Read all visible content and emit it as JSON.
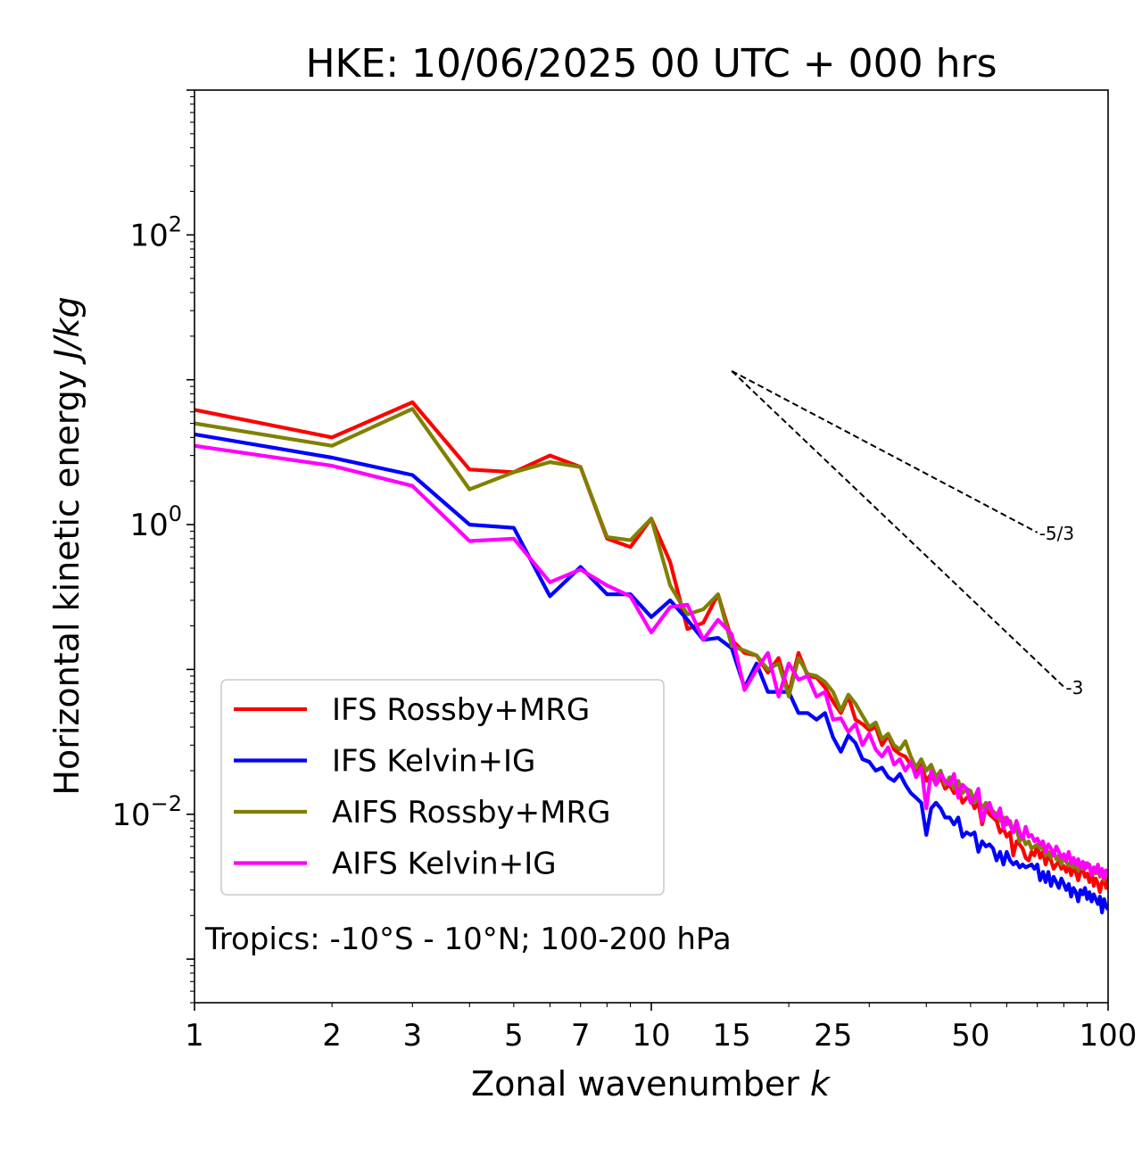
{
  "chart_data": {
    "type": "line",
    "title": "HKE: 10/06/2025 00 UTC + 000 hrs",
    "xlabel": "Zonal wavenumber",
    "xlabel_symbol": "k",
    "ylabel": "Horizontal kinetic energy",
    "ylabel_unit": "J/kg",
    "x_scale": "log",
    "y_scale": "log",
    "xlim": [
      1,
      100
    ],
    "ylim": [
      0.0005,
      1000
    ],
    "x_ticks": [
      1,
      2,
      3,
      5,
      7,
      10,
      15,
      25,
      50,
      100
    ],
    "x_tick_labels": [
      "1",
      "2",
      "3",
      "5",
      "7",
      "10",
      "15",
      "25",
      "50",
      "100"
    ],
    "y_ticks": [
      0.01,
      1,
      100
    ],
    "y_tick_labels": [
      {
        "base": "10",
        "exp": "−2"
      },
      {
        "base": "10",
        "exp": "0"
      },
      {
        "base": "10",
        "exp": "2"
      }
    ],
    "grid": false,
    "legend_position": "lower-left",
    "annotation": "Tropics: -10°S - 10°N; 100-200 hPa",
    "reference_slopes": [
      {
        "label": "-5/3",
        "slope": -1.6667,
        "x_start": 15,
        "x_end": 70,
        "y_start": 11.5
      },
      {
        "label": "-3",
        "slope": -3,
        "x_start": 15,
        "x_end": 80,
        "y_start": 11.5
      }
    ],
    "series": [
      {
        "name": "IFS Rossby+MRG",
        "color": "#ff0000",
        "x": [
          1,
          2,
          3,
          4,
          5,
          6,
          7,
          8,
          9,
          10,
          11,
          12,
          13,
          14,
          15,
          16,
          17,
          18,
          19,
          20,
          21,
          22,
          23,
          24,
          25,
          26,
          27,
          28,
          29,
          30,
          31,
          32,
          33,
          34,
          35,
          36,
          37,
          38,
          39,
          40,
          41,
          42,
          43,
          44,
          45,
          46,
          47,
          48,
          49,
          50,
          51,
          52,
          53,
          54,
          55,
          56,
          57,
          58,
          59,
          60,
          61,
          62,
          63,
          64,
          65,
          66,
          67,
          68,
          69,
          70,
          71,
          72,
          73,
          74,
          75,
          76,
          77,
          78,
          79,
          80,
          81,
          82,
          83,
          84,
          85,
          86,
          87,
          88,
          89,
          90,
          91,
          92,
          93,
          94,
          95,
          96,
          97,
          98,
          99,
          100
        ],
        "y": [
          6.2,
          4.0,
          7.0,
          2.4,
          2.3,
          3.0,
          2.5,
          0.8,
          0.7,
          1.1,
          0.55,
          0.19,
          0.21,
          0.33,
          0.16,
          0.13,
          0.125,
          0.095,
          0.12,
          0.068,
          0.13,
          0.09,
          0.088,
          0.075,
          0.06,
          0.05,
          0.065,
          0.045,
          0.042,
          0.038,
          0.04,
          0.03,
          0.035,
          0.028,
          0.026,
          0.025,
          0.022,
          0.02,
          0.022,
          0.017,
          0.019,
          0.016,
          0.018,
          0.015,
          0.016,
          0.014,
          0.015,
          0.012,
          0.013,
          0.013,
          0.011,
          0.012,
          0.0085,
          0.011,
          0.01,
          0.0095,
          0.009,
          0.0075,
          0.008,
          0.007,
          0.0075,
          0.0052,
          0.0065,
          0.0062,
          0.0058,
          0.005,
          0.0048,
          0.0055,
          0.0052,
          0.0062,
          0.005,
          0.0055,
          0.0045,
          0.0052,
          0.0048,
          0.0042,
          0.0045,
          0.0047,
          0.0042,
          0.0044,
          0.004,
          0.0045,
          0.0038,
          0.0042,
          0.004,
          0.0035,
          0.004,
          0.0042,
          0.0037,
          0.0039,
          0.0034,
          0.0041,
          0.0032,
          0.0036,
          0.0033,
          0.0029,
          0.0034,
          0.0036,
          0.0031,
          0.0038
        ]
      },
      {
        "name": "IFS Kelvin+IG",
        "color": "#0000ff",
        "x": [
          1,
          2,
          3,
          4,
          5,
          6,
          7,
          8,
          9,
          10,
          11,
          12,
          13,
          14,
          15,
          16,
          17,
          18,
          19,
          20,
          21,
          22,
          23,
          24,
          25,
          26,
          27,
          28,
          29,
          30,
          31,
          32,
          33,
          34,
          35,
          36,
          37,
          38,
          39,
          40,
          41,
          42,
          43,
          44,
          45,
          46,
          47,
          48,
          49,
          50,
          51,
          52,
          53,
          54,
          55,
          56,
          57,
          58,
          59,
          60,
          61,
          62,
          63,
          64,
          65,
          66,
          67,
          68,
          69,
          70,
          71,
          72,
          73,
          74,
          75,
          76,
          77,
          78,
          79,
          80,
          81,
          82,
          83,
          84,
          85,
          86,
          87,
          88,
          89,
          90,
          91,
          92,
          93,
          94,
          95,
          96,
          97,
          98,
          99,
          100
        ],
        "y": [
          4.2,
          2.9,
          2.2,
          1.0,
          0.95,
          0.32,
          0.51,
          0.33,
          0.33,
          0.23,
          0.3,
          0.22,
          0.16,
          0.165,
          0.14,
          0.075,
          0.11,
          0.07,
          0.07,
          0.07,
          0.05,
          0.05,
          0.045,
          0.05,
          0.034,
          0.027,
          0.035,
          0.031,
          0.024,
          0.023,
          0.02,
          0.021,
          0.018,
          0.017,
          0.019,
          0.016,
          0.014,
          0.013,
          0.012,
          0.0072,
          0.011,
          0.012,
          0.011,
          0.0095,
          0.0095,
          0.0085,
          0.0095,
          0.007,
          0.0075,
          0.0072,
          0.0075,
          0.0055,
          0.0065,
          0.006,
          0.0062,
          0.0058,
          0.0048,
          0.0055,
          0.0045,
          0.0055,
          0.0048,
          0.0045,
          0.0047,
          0.0043,
          0.0045,
          0.0043,
          0.0044,
          0.0045,
          0.0042,
          0.0045,
          0.0035,
          0.004,
          0.0034,
          0.004,
          0.0032,
          0.0037,
          0.0034,
          0.0031,
          0.0036,
          0.0033,
          0.003,
          0.0033,
          0.0027,
          0.0031,
          0.0029,
          0.0025,
          0.003,
          0.0028,
          0.0031,
          0.0026,
          0.0029,
          0.0025,
          0.0028,
          0.0026,
          0.0024,
          0.0027,
          0.0021,
          0.0026,
          0.0023,
          0.0022
        ]
      },
      {
        "name": "AIFS Rossby+MRG",
        "color": "#808000",
        "x": [
          1,
          2,
          3,
          4,
          5,
          6,
          7,
          8,
          9,
          10,
          11,
          12,
          13,
          14,
          15,
          16,
          17,
          18,
          19,
          20,
          21,
          22,
          23,
          24,
          25,
          26,
          27,
          28,
          29,
          30,
          31,
          32,
          33,
          34,
          35,
          36,
          37,
          38,
          39,
          40,
          41,
          42,
          43,
          44,
          45,
          46,
          47,
          48,
          49,
          50,
          51,
          52,
          53,
          54,
          55,
          56,
          57,
          58,
          59,
          60,
          61,
          62,
          63,
          64,
          65,
          66,
          67,
          68,
          69,
          70,
          71,
          72,
          73,
          74,
          75,
          76,
          77,
          78,
          79,
          80,
          81,
          82,
          83,
          84,
          85,
          86,
          87,
          88,
          89,
          90,
          91,
          92,
          93,
          94,
          95,
          96,
          97,
          98,
          99,
          100
        ],
        "y": [
          5.0,
          3.5,
          6.3,
          1.75,
          2.3,
          2.7,
          2.5,
          0.82,
          0.78,
          1.1,
          0.38,
          0.24,
          0.26,
          0.33,
          0.145,
          0.135,
          0.125,
          0.1,
          0.11,
          0.065,
          0.12,
          0.093,
          0.09,
          0.082,
          0.07,
          0.052,
          0.067,
          0.058,
          0.048,
          0.04,
          0.043,
          0.033,
          0.036,
          0.03,
          0.028,
          0.032,
          0.025,
          0.021,
          0.024,
          0.02,
          0.022,
          0.018,
          0.02,
          0.016,
          0.018,
          0.015,
          0.017,
          0.014,
          0.015,
          0.0145,
          0.012,
          0.013,
          0.011,
          0.012,
          0.011,
          0.0105,
          0.01,
          0.009,
          0.0095,
          0.0085,
          0.009,
          0.0075,
          0.008,
          0.0065,
          0.007,
          0.0062,
          0.0065,
          0.0058,
          0.006,
          0.0062,
          0.0058,
          0.006,
          0.0052,
          0.0055,
          0.005,
          0.0056,
          0.0049,
          0.0052,
          0.0045,
          0.0051,
          0.0047,
          0.0044,
          0.0048,
          0.0043,
          0.0046,
          0.0041,
          0.0044,
          0.0042,
          0.0046,
          0.0043,
          0.0045,
          0.004,
          0.0043,
          0.0039,
          0.0042,
          0.0037,
          0.0041,
          0.0035,
          0.004,
          0.0036
        ]
      },
      {
        "name": "AIFS Kelvin+IG",
        "color": "#ff00ff",
        "x": [
          1,
          2,
          3,
          4,
          5,
          6,
          7,
          8,
          9,
          10,
          11,
          12,
          13,
          14,
          15,
          16,
          17,
          18,
          19,
          20,
          21,
          22,
          23,
          24,
          25,
          26,
          27,
          28,
          29,
          30,
          31,
          32,
          33,
          34,
          35,
          36,
          37,
          38,
          39,
          40,
          41,
          42,
          43,
          44,
          45,
          46,
          47,
          48,
          49,
          50,
          51,
          52,
          53,
          54,
          55,
          56,
          57,
          58,
          59,
          60,
          61,
          62,
          63,
          64,
          65,
          66,
          67,
          68,
          69,
          70,
          71,
          72,
          73,
          74,
          75,
          76,
          77,
          78,
          79,
          80,
          81,
          82,
          83,
          84,
          85,
          86,
          87,
          88,
          89,
          90,
          91,
          92,
          93,
          94,
          95,
          96,
          97,
          98,
          99,
          100
        ],
        "y": [
          3.5,
          2.55,
          1.85,
          0.77,
          0.8,
          0.4,
          0.49,
          0.38,
          0.32,
          0.18,
          0.27,
          0.28,
          0.16,
          0.22,
          0.175,
          0.072,
          0.1,
          0.13,
          0.065,
          0.11,
          0.085,
          0.09,
          0.065,
          0.07,
          0.045,
          0.046,
          0.037,
          0.042,
          0.03,
          0.036,
          0.028,
          0.025,
          0.029,
          0.022,
          0.024,
          0.02,
          0.023,
          0.018,
          0.021,
          0.011,
          0.02,
          0.016,
          0.019,
          0.017,
          0.016,
          0.019,
          0.013,
          0.016,
          0.015,
          0.012,
          0.013,
          0.015,
          0.009,
          0.011,
          0.012,
          0.01,
          0.0095,
          0.011,
          0.008,
          0.0095,
          0.0085,
          0.0075,
          0.009,
          0.0075,
          0.0068,
          0.0082,
          0.007,
          0.0072,
          0.0065,
          0.0068,
          0.0062,
          0.0065,
          0.0055,
          0.0062,
          0.0058,
          0.0052,
          0.006,
          0.0055,
          0.005,
          0.0053,
          0.0048,
          0.0055,
          0.0046,
          0.005,
          0.0045,
          0.0049,
          0.0043,
          0.0047,
          0.0042,
          0.0046,
          0.0044,
          0.0038,
          0.0043,
          0.004,
          0.0045,
          0.0038,
          0.0042,
          0.0036,
          0.0041,
          0.0039
        ]
      }
    ]
  }
}
